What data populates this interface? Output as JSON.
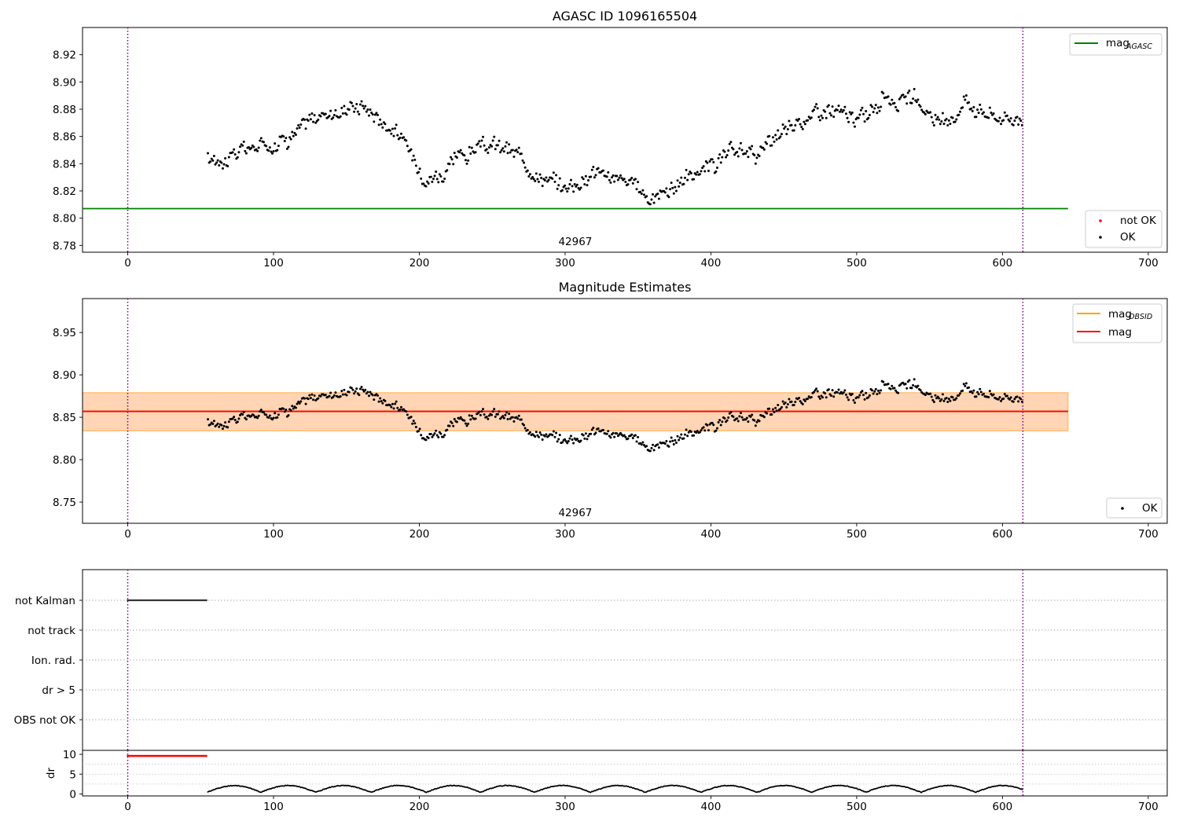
{
  "figure": {
    "title": "AGASC ID 1096165504",
    "obsid_label": "42967"
  },
  "chart_data": [
    {
      "type": "scatter",
      "title": "AGASC ID 1096165504",
      "xlim": [
        -31,
        713
      ],
      "ylim": [
        8.775,
        8.94
      ],
      "xticks": [
        0,
        100,
        200,
        300,
        400,
        500,
        600,
        700
      ],
      "yticks": [
        8.78,
        8.8,
        8.82,
        8.84,
        8.86,
        8.88,
        8.9,
        8.92
      ],
      "ytick_labels": [
        "8.78",
        "8.80",
        "8.82",
        "8.84",
        "8.86",
        "8.88",
        "8.90",
        "8.92"
      ],
      "annotation": "42967",
      "vlines": [
        0,
        614
      ],
      "series": [
        {
          "name": "mag_AGASC",
          "kind": "line",
          "color": "#008000",
          "x": [
            -31,
            645
          ],
          "y": [
            8.807,
            8.807
          ]
        },
        {
          "name": "not OK",
          "kind": "points",
          "color": "#ff0000",
          "x": [],
          "y": []
        },
        {
          "name": "OK",
          "kind": "points",
          "color": "#000000",
          "trend": {
            "x": [
              55,
              100,
              135,
              160,
              185,
              200,
              215,
              240,
              260,
              280,
              300,
              320,
              340,
              360,
              380,
              400,
              420,
              440,
              460,
              480,
              500,
              520,
              540,
              560,
              575,
              595,
              614
            ],
            "y": [
              8.842,
              8.856,
              8.876,
              8.885,
              8.864,
              8.835,
              8.833,
              8.853,
              8.85,
              8.835,
              8.822,
              8.836,
              8.826,
              8.815,
              8.828,
              8.838,
              8.848,
              8.851,
              8.872,
              8.88,
              8.87,
              8.89,
              8.884,
              8.868,
              8.888,
              8.875,
              8.872
            ]
          },
          "noise": 0.008
        }
      ],
      "legend": [
        {
          "label": "mag",
          "sub": "AGASC",
          "marker": "line",
          "color": "#008000",
          "position": "upper right"
        },
        {
          "label": "not OK",
          "marker": "dot",
          "color": "#ff0000",
          "position": "lower right"
        },
        {
          "label": "OK",
          "marker": "dot",
          "color": "#000000",
          "position": "lower right"
        }
      ]
    },
    {
      "type": "scatter",
      "title": "Magnitude Estimates",
      "xlim": [
        -31,
        713
      ],
      "ylim": [
        8.725,
        8.99
      ],
      "xticks": [
        0,
        100,
        200,
        300,
        400,
        500,
        600,
        700
      ],
      "yticks": [
        8.75,
        8.8,
        8.85,
        8.9,
        8.95
      ],
      "ytick_labels": [
        "8.75",
        "8.80",
        "8.85",
        "8.90",
        "8.95"
      ],
      "annotation": "42967",
      "vlines": [
        0,
        614
      ],
      "bands": [
        {
          "x": [
            -31,
            645
          ],
          "y": [
            8.834,
            8.879
          ],
          "color": "#ffc0cb",
          "alpha": 0.45
        },
        {
          "x": [
            -31,
            645
          ],
          "y": [
            8.834,
            8.879
          ],
          "color": "#ffa500",
          "alpha": 0.22
        }
      ],
      "series": [
        {
          "name": "mag_OBSID",
          "kind": "line",
          "color": "#ffa500",
          "x": [
            -31,
            645
          ],
          "y": [
            8.857,
            8.857
          ]
        },
        {
          "name": "mag",
          "kind": "line",
          "color": "#ff0000",
          "x": [
            -31,
            645
          ],
          "y": [
            8.857,
            8.857
          ]
        },
        {
          "name": "OK",
          "kind": "points",
          "color": "#000000",
          "same_as_panel": 0
        }
      ],
      "legend": [
        {
          "label": "mag",
          "sub": "OBSID",
          "marker": "line",
          "color": "#ffa500",
          "position": "upper right"
        },
        {
          "label": "mag",
          "sub": "",
          "marker": "line",
          "color": "#ff0000",
          "position": "upper right"
        },
        {
          "label": "OK",
          "marker": "dot",
          "color": "#000000",
          "position": "lower right"
        }
      ]
    },
    {
      "type": "scatter",
      "title": "",
      "xlim": [
        -31,
        713
      ],
      "categories": [
        "not Kalman",
        "not track",
        "Ion. rad.",
        "dr > 5",
        "OBS not OK"
      ],
      "vlines": [
        0,
        614
      ],
      "series": [
        {
          "name": "not Kalman",
          "kind": "points",
          "color": "#000000",
          "x_range": [
            0,
            54
          ],
          "category": "not Kalman"
        }
      ]
    },
    {
      "type": "scatter",
      "title": "",
      "xlim": [
        -31,
        713
      ],
      "ylim": [
        -0.5,
        11
      ],
      "ylabel": "dr",
      "xticks": [
        0,
        100,
        200,
        300,
        400,
        500,
        600,
        700
      ],
      "yticks": [
        0,
        5,
        10
      ],
      "ytick_labels": [
        "0",
        "5",
        "10"
      ],
      "vlines": [
        0,
        614
      ],
      "series": [
        {
          "name": "dr not OK",
          "kind": "points",
          "color": "#ff0000",
          "x_range": [
            0,
            54
          ],
          "y": 9.6
        },
        {
          "name": "dr",
          "kind": "points",
          "color": "#000000",
          "x_range": [
            55,
            614
          ],
          "y_range": [
            0,
            2.5
          ]
        }
      ]
    }
  ]
}
